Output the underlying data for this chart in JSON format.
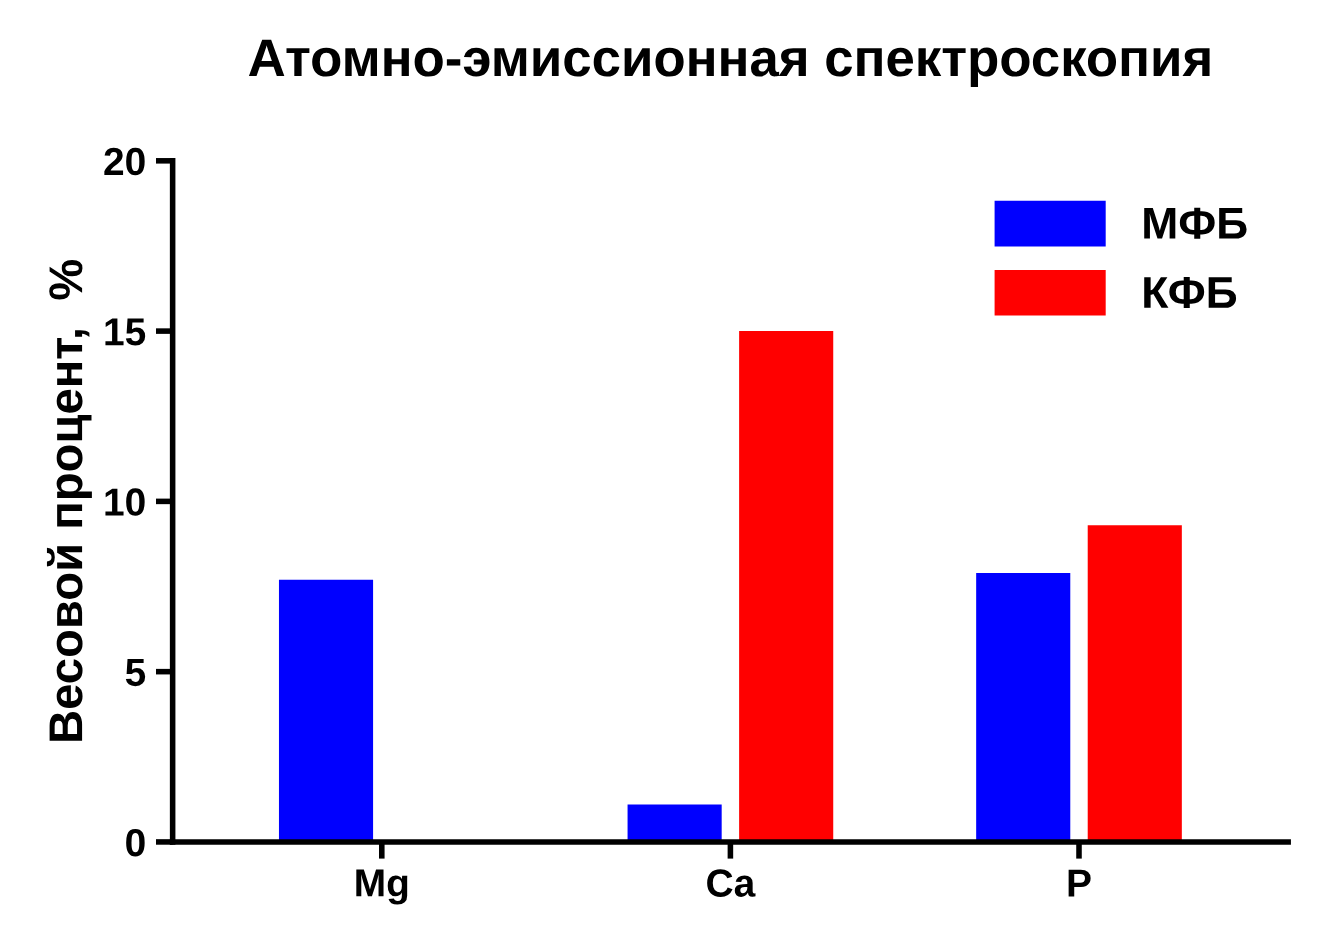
{
  "chart_data": {
    "type": "bar",
    "title": "Атомно-эмиссионная спектроскопия",
    "ylabel": "Весовой процент,  %",
    "categories": [
      "Mg",
      "Ca",
      "P"
    ],
    "series": [
      {
        "name": "МФБ",
        "color": "#0000ff",
        "values": [
          7.7,
          1.1,
          7.9
        ]
      },
      {
        "name": "КФБ",
        "color": "#ff0000",
        "values": [
          0,
          15.0,
          9.3
        ]
      }
    ],
    "ylim": [
      0,
      20
    ],
    "yticks": [
      0,
      5,
      10,
      15,
      20
    ],
    "grid": false,
    "legend": "top right"
  }
}
